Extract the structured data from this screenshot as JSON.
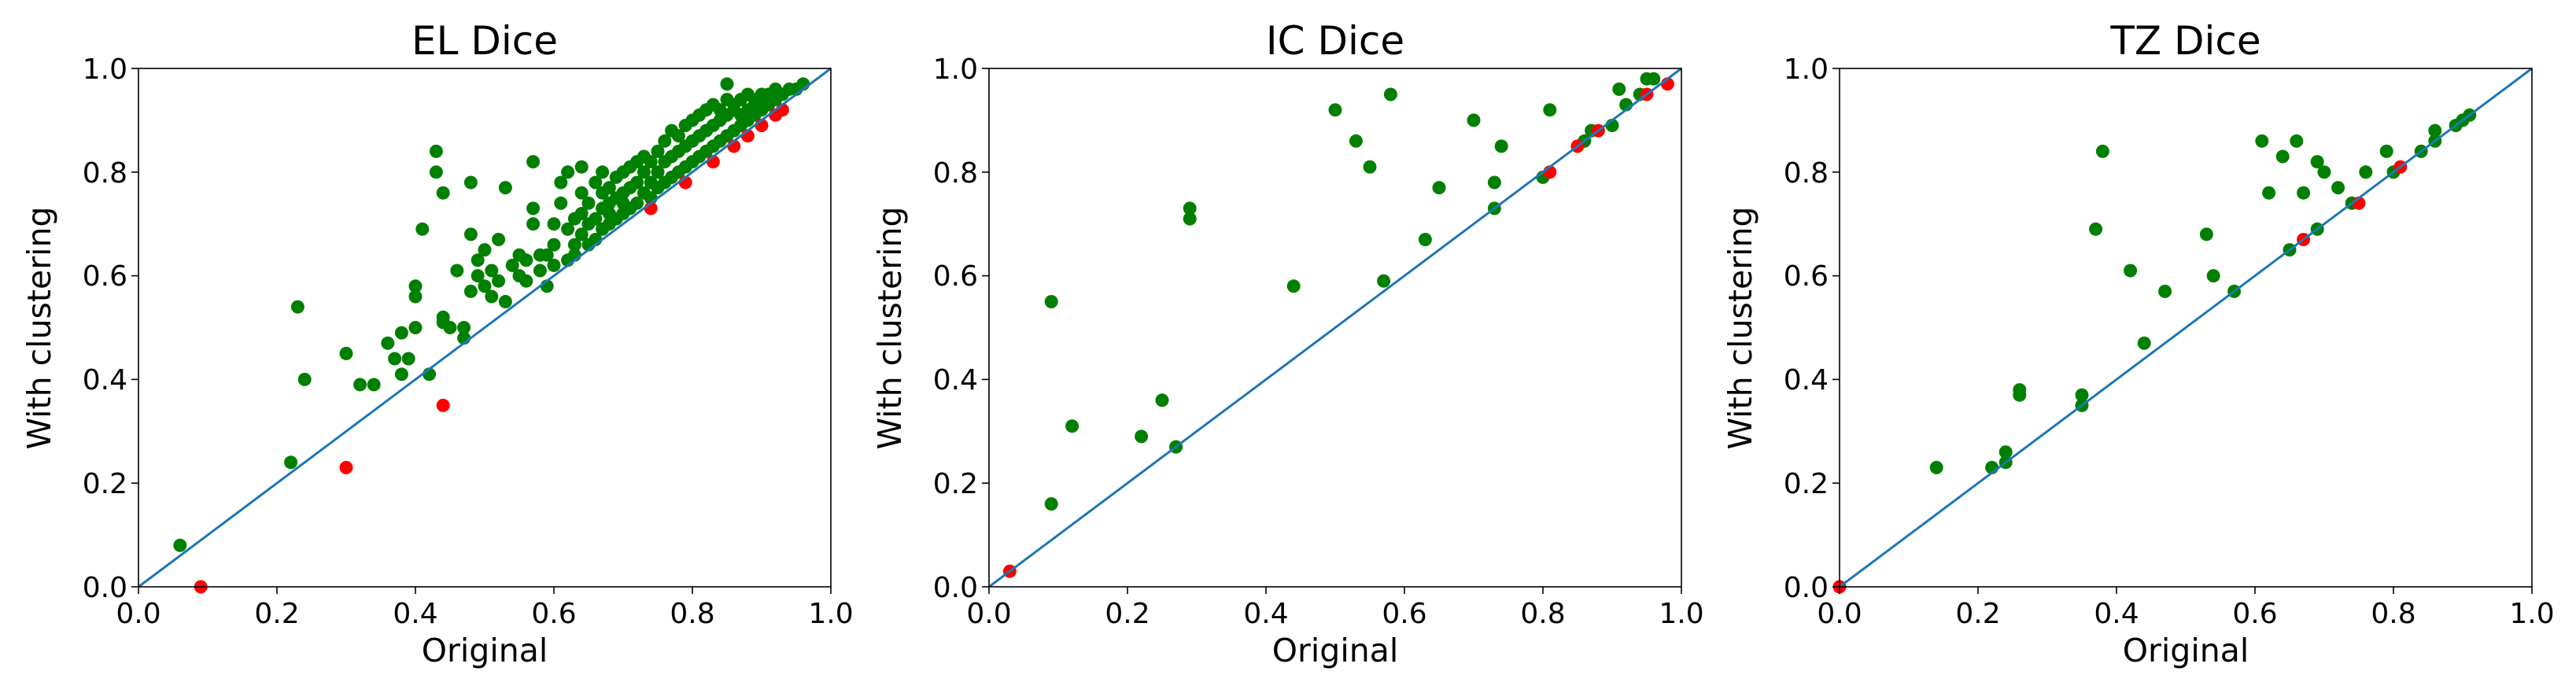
{
  "colors": {
    "improved": "#008000",
    "worse": "#ff0000",
    "identity_line": "#1f77b4"
  },
  "chart_data": [
    {
      "type": "scatter",
      "title": "EL Dice",
      "xlabel": "Original",
      "ylabel": "With clustering",
      "xlim": [
        0,
        1
      ],
      "ylim": [
        0,
        1
      ],
      "xticks": [
        "0.0",
        "0.2",
        "0.4",
        "0.6",
        "0.8",
        "1.0"
      ],
      "yticks": [
        "0.0",
        "0.2",
        "0.4",
        "0.6",
        "0.8",
        "1.0"
      ],
      "grid": false,
      "reference_line": "y = x",
      "series": [
        {
          "color": "#008000",
          "points": [
            [
              0.06,
              0.08
            ],
            [
              0.22,
              0.24
            ],
            [
              0.23,
              0.54
            ],
            [
              0.24,
              0.4
            ],
            [
              0.3,
              0.45
            ],
            [
              0.32,
              0.39
            ],
            [
              0.34,
              0.39
            ],
            [
              0.36,
              0.47
            ],
            [
              0.37,
              0.44
            ],
            [
              0.38,
              0.41
            ],
            [
              0.38,
              0.49
            ],
            [
              0.39,
              0.44
            ],
            [
              0.4,
              0.5
            ],
            [
              0.4,
              0.56
            ],
            [
              0.4,
              0.58
            ],
            [
              0.41,
              0.69
            ],
            [
              0.42,
              0.41
            ],
            [
              0.43,
              0.84
            ],
            [
              0.43,
              0.8
            ],
            [
              0.44,
              0.76
            ],
            [
              0.44,
              0.51
            ],
            [
              0.44,
              0.52
            ],
            [
              0.45,
              0.5
            ],
            [
              0.46,
              0.61
            ],
            [
              0.47,
              0.48
            ],
            [
              0.47,
              0.5
            ],
            [
              0.48,
              0.57
            ],
            [
              0.48,
              0.68
            ],
            [
              0.48,
              0.78
            ],
            [
              0.49,
              0.6
            ],
            [
              0.49,
              0.63
            ],
            [
              0.5,
              0.58
            ],
            [
              0.5,
              0.65
            ],
            [
              0.51,
              0.56
            ],
            [
              0.51,
              0.61
            ],
            [
              0.52,
              0.59
            ],
            [
              0.52,
              0.67
            ],
            [
              0.53,
              0.77
            ],
            [
              0.53,
              0.55
            ],
            [
              0.54,
              0.62
            ],
            [
              0.55,
              0.6
            ],
            [
              0.55,
              0.64
            ],
            [
              0.56,
              0.63
            ],
            [
              0.56,
              0.59
            ],
            [
              0.57,
              0.7
            ],
            [
              0.57,
              0.73
            ],
            [
              0.57,
              0.82
            ],
            [
              0.58,
              0.64
            ],
            [
              0.58,
              0.61
            ],
            [
              0.59,
              0.58
            ],
            [
              0.59,
              0.64
            ],
            [
              0.6,
              0.66
            ],
            [
              0.6,
              0.62
            ],
            [
              0.6,
              0.7
            ],
            [
              0.61,
              0.74
            ],
            [
              0.61,
              0.78
            ],
            [
              0.62,
              0.69
            ],
            [
              0.62,
              0.63
            ],
            [
              0.62,
              0.8
            ],
            [
              0.63,
              0.71
            ],
            [
              0.63,
              0.64
            ],
            [
              0.63,
              0.66
            ],
            [
              0.64,
              0.76
            ],
            [
              0.64,
              0.68
            ],
            [
              0.64,
              0.72
            ],
            [
              0.64,
              0.81
            ],
            [
              0.65,
              0.66
            ],
            [
              0.65,
              0.7
            ],
            [
              0.65,
              0.74
            ],
            [
              0.66,
              0.67
            ],
            [
              0.66,
              0.78
            ],
            [
              0.66,
              0.71
            ],
            [
              0.67,
              0.69
            ],
            [
              0.67,
              0.73
            ],
            [
              0.67,
              0.76
            ],
            [
              0.67,
              0.8
            ],
            [
              0.68,
              0.7
            ],
            [
              0.68,
              0.72
            ],
            [
              0.68,
              0.74
            ],
            [
              0.68,
              0.77
            ],
            [
              0.69,
              0.71
            ],
            [
              0.69,
              0.75
            ],
            [
              0.69,
              0.79
            ],
            [
              0.7,
              0.72
            ],
            [
              0.7,
              0.76
            ],
            [
              0.7,
              0.8
            ],
            [
              0.7,
              0.74
            ],
            [
              0.71,
              0.73
            ],
            [
              0.71,
              0.77
            ],
            [
              0.71,
              0.81
            ],
            [
              0.72,
              0.74
            ],
            [
              0.72,
              0.78
            ],
            [
              0.72,
              0.82
            ],
            [
              0.73,
              0.76
            ],
            [
              0.73,
              0.8
            ],
            [
              0.73,
              0.83
            ],
            [
              0.74,
              0.75
            ],
            [
              0.74,
              0.78
            ],
            [
              0.74,
              0.82
            ],
            [
              0.75,
              0.77
            ],
            [
              0.75,
              0.8
            ],
            [
              0.75,
              0.84
            ],
            [
              0.76,
              0.78
            ],
            [
              0.76,
              0.82
            ],
            [
              0.76,
              0.86
            ],
            [
              0.77,
              0.79
            ],
            [
              0.77,
              0.83
            ],
            [
              0.77,
              0.88
            ],
            [
              0.78,
              0.8
            ],
            [
              0.78,
              0.84
            ],
            [
              0.78,
              0.87
            ],
            [
              0.79,
              0.81
            ],
            [
              0.79,
              0.85
            ],
            [
              0.79,
              0.89
            ],
            [
              0.8,
              0.82
            ],
            [
              0.8,
              0.86
            ],
            [
              0.8,
              0.9
            ],
            [
              0.81,
              0.83
            ],
            [
              0.81,
              0.87
            ],
            [
              0.81,
              0.91
            ],
            [
              0.82,
              0.84
            ],
            [
              0.82,
              0.88
            ],
            [
              0.82,
              0.92
            ],
            [
              0.83,
              0.85
            ],
            [
              0.83,
              0.89
            ],
            [
              0.83,
              0.93
            ],
            [
              0.84,
              0.86
            ],
            [
              0.84,
              0.9
            ],
            [
              0.84,
              0.92
            ],
            [
              0.85,
              0.87
            ],
            [
              0.85,
              0.91
            ],
            [
              0.85,
              0.94
            ],
            [
              0.86,
              0.88
            ],
            [
              0.86,
              0.92
            ],
            [
              0.86,
              0.93
            ],
            [
              0.87,
              0.89
            ],
            [
              0.87,
              0.91
            ],
            [
              0.87,
              0.94
            ],
            [
              0.88,
              0.9
            ],
            [
              0.88,
              0.92
            ],
            [
              0.88,
              0.95
            ],
            [
              0.89,
              0.91
            ],
            [
              0.89,
              0.93
            ],
            [
              0.89,
              0.94
            ],
            [
              0.9,
              0.92
            ],
            [
              0.9,
              0.94
            ],
            [
              0.9,
              0.95
            ],
            [
              0.91,
              0.93
            ],
            [
              0.91,
              0.95
            ],
            [
              0.92,
              0.94
            ],
            [
              0.92,
              0.96
            ],
            [
              0.93,
              0.95
            ],
            [
              0.94,
              0.96
            ],
            [
              0.95,
              0.96
            ],
            [
              0.96,
              0.97
            ],
            [
              0.85,
              0.97
            ]
          ]
        },
        {
          "color": "#ff0000",
          "points": [
            [
              0.09,
              0.0
            ],
            [
              0.3,
              0.23
            ],
            [
              0.44,
              0.35
            ],
            [
              0.74,
              0.73
            ],
            [
              0.79,
              0.78
            ],
            [
              0.83,
              0.82
            ],
            [
              0.86,
              0.85
            ],
            [
              0.88,
              0.87
            ],
            [
              0.9,
              0.89
            ],
            [
              0.92,
              0.91
            ],
            [
              0.93,
              0.92
            ]
          ]
        }
      ]
    },
    {
      "type": "scatter",
      "title": "IC Dice",
      "xlabel": "Original",
      "ylabel": "With clustering",
      "xlim": [
        0,
        1
      ],
      "ylim": [
        0,
        1
      ],
      "xticks": [
        "0.0",
        "0.2",
        "0.4",
        "0.6",
        "0.8",
        "1.0"
      ],
      "yticks": [
        "0.0",
        "0.2",
        "0.4",
        "0.6",
        "0.8",
        "1.0"
      ],
      "grid": false,
      "reference_line": "y = x",
      "series": [
        {
          "color": "#008000",
          "points": [
            [
              0.09,
              0.55
            ],
            [
              0.09,
              0.16
            ],
            [
              0.12,
              0.31
            ],
            [
              0.22,
              0.29
            ],
            [
              0.25,
              0.36
            ],
            [
              0.27,
              0.27
            ],
            [
              0.29,
              0.73
            ],
            [
              0.29,
              0.71
            ],
            [
              0.44,
              0.58
            ],
            [
              0.5,
              0.92
            ],
            [
              0.53,
              0.86
            ],
            [
              0.55,
              0.81
            ],
            [
              0.57,
              0.59
            ],
            [
              0.58,
              0.95
            ],
            [
              0.63,
              0.67
            ],
            [
              0.65,
              0.77
            ],
            [
              0.7,
              0.9
            ],
            [
              0.73,
              0.78
            ],
            [
              0.73,
              0.73
            ],
            [
              0.74,
              0.85
            ],
            [
              0.8,
              0.79
            ],
            [
              0.81,
              0.92
            ],
            [
              0.86,
              0.86
            ],
            [
              0.87,
              0.88
            ],
            [
              0.9,
              0.89
            ],
            [
              0.91,
              0.96
            ],
            [
              0.92,
              0.93
            ],
            [
              0.94,
              0.95
            ],
            [
              0.95,
              0.98
            ],
            [
              0.96,
              0.98
            ]
          ]
        },
        {
          "color": "#ff0000",
          "points": [
            [
              0.03,
              0.03
            ],
            [
              0.81,
              0.8
            ],
            [
              0.85,
              0.85
            ],
            [
              0.88,
              0.88
            ],
            [
              0.95,
              0.95
            ],
            [
              0.98,
              0.97
            ]
          ]
        }
      ]
    },
    {
      "type": "scatter",
      "title": "TZ Dice",
      "xlabel": "Original",
      "ylabel": "With clustering",
      "xlim": [
        0,
        1
      ],
      "ylim": [
        0,
        1
      ],
      "xticks": [
        "0.0",
        "0.2",
        "0.4",
        "0.6",
        "0.8",
        "1.0"
      ],
      "yticks": [
        "0.0",
        "0.2",
        "0.4",
        "0.6",
        "0.8",
        "1.0"
      ],
      "grid": false,
      "reference_line": "y = x",
      "series": [
        {
          "color": "#008000",
          "points": [
            [
              0.14,
              0.23
            ],
            [
              0.22,
              0.23
            ],
            [
              0.24,
              0.26
            ],
            [
              0.24,
              0.24
            ],
            [
              0.26,
              0.38
            ],
            [
              0.26,
              0.37
            ],
            [
              0.35,
              0.37
            ],
            [
              0.35,
              0.35
            ],
            [
              0.37,
              0.69
            ],
            [
              0.38,
              0.84
            ],
            [
              0.42,
              0.61
            ],
            [
              0.44,
              0.47
            ],
            [
              0.47,
              0.57
            ],
            [
              0.53,
              0.68
            ],
            [
              0.54,
              0.6
            ],
            [
              0.57,
              0.57
            ],
            [
              0.61,
              0.86
            ],
            [
              0.62,
              0.76
            ],
            [
              0.64,
              0.83
            ],
            [
              0.65,
              0.65
            ],
            [
              0.66,
              0.86
            ],
            [
              0.67,
              0.76
            ],
            [
              0.69,
              0.82
            ],
            [
              0.69,
              0.69
            ],
            [
              0.7,
              0.8
            ],
            [
              0.72,
              0.77
            ],
            [
              0.74,
              0.74
            ],
            [
              0.76,
              0.8
            ],
            [
              0.79,
              0.84
            ],
            [
              0.8,
              0.8
            ],
            [
              0.84,
              0.84
            ],
            [
              0.86,
              0.88
            ],
            [
              0.86,
              0.86
            ],
            [
              0.89,
              0.89
            ],
            [
              0.9,
              0.9
            ],
            [
              0.91,
              0.91
            ]
          ]
        },
        {
          "color": "#ff0000",
          "points": [
            [
              0.0,
              0.0
            ],
            [
              0.67,
              0.67
            ],
            [
              0.75,
              0.74
            ],
            [
              0.81,
              0.81
            ]
          ]
        }
      ]
    }
  ]
}
